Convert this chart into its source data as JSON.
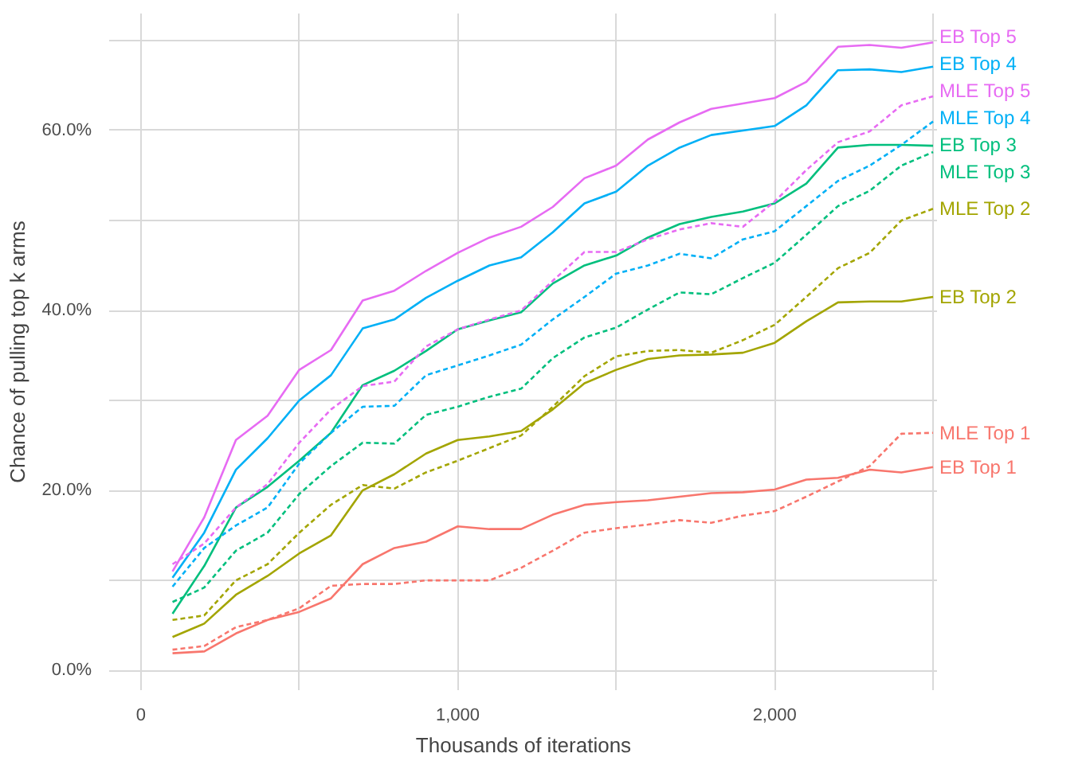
{
  "chart_data": {
    "type": "line",
    "xlabel": "Thousands of iterations",
    "ylabel": "Chance of pulling top k arms",
    "x": [
      100,
      200,
      300,
      400,
      500,
      600,
      700,
      800,
      900,
      1000,
      1100,
      1200,
      1300,
      1400,
      1500,
      1600,
      1700,
      1800,
      1900,
      2000,
      2100,
      2200,
      2300,
      2400,
      2500
    ],
    "xlim": [
      -100,
      2515
    ],
    "xticks": [
      {
        "value": 0,
        "label": "0"
      },
      {
        "value": 500,
        "label": null
      },
      {
        "value": 1000,
        "label": "1,000"
      },
      {
        "value": 1500,
        "label": null
      },
      {
        "value": 2000,
        "label": "2,000"
      },
      {
        "value": 2500,
        "label": null
      }
    ],
    "ylim": [
      -0.022,
      0.73
    ],
    "yticks": [
      {
        "value": 0,
        "label": "0.0%"
      },
      {
        "value": 0.1,
        "label": null
      },
      {
        "value": 0.2,
        "label": "20.0%"
      },
      {
        "value": 0.3,
        "label": null
      },
      {
        "value": 0.4,
        "label": "40.0%"
      },
      {
        "value": 0.5,
        "label": null
      },
      {
        "value": 0.6,
        "label": "60.0%"
      },
      {
        "value": 0.7,
        "label": null
      }
    ],
    "grid": true,
    "series": [
      {
        "name": "EB Top 1",
        "color": "#f8766d",
        "line_style": "solid",
        "values": [
          0.019,
          0.021,
          0.041,
          0.056,
          0.065,
          0.08,
          0.118,
          0.136,
          0.143,
          0.16,
          0.157,
          0.157,
          0.173,
          0.184,
          0.187,
          0.189,
          0.193,
          0.197,
          0.198,
          0.201,
          0.212,
          0.214,
          0.223,
          0.22,
          0.226
        ]
      },
      {
        "name": "MLE Top 1",
        "color": "#f8766d",
        "line_style": "dashed",
        "values": [
          0.023,
          0.027,
          0.048,
          0.056,
          0.069,
          0.094,
          0.096,
          0.096,
          0.1,
          0.1,
          0.1,
          0.114,
          0.133,
          0.153,
          0.158,
          0.162,
          0.167,
          0.164,
          0.172,
          0.177,
          0.193,
          0.21,
          0.227,
          0.263,
          0.264
        ]
      },
      {
        "name": "EB Top 2",
        "color": "#a3a500",
        "line_style": "solid",
        "values": [
          0.037,
          0.052,
          0.084,
          0.105,
          0.13,
          0.15,
          0.2,
          0.218,
          0.241,
          0.256,
          0.26,
          0.266,
          0.29,
          0.319,
          0.334,
          0.346,
          0.35,
          0.351,
          0.353,
          0.364,
          0.388,
          0.409,
          0.41,
          0.41,
          0.415
        ]
      },
      {
        "name": "MLE Top 2",
        "color": "#a3a500",
        "line_style": "dashed",
        "values": [
          0.056,
          0.061,
          0.1,
          0.118,
          0.153,
          0.184,
          0.206,
          0.202,
          0.22,
          0.233,
          0.247,
          0.261,
          0.293,
          0.327,
          0.349,
          0.355,
          0.356,
          0.353,
          0.367,
          0.384,
          0.415,
          0.447,
          0.464,
          0.5,
          0.513
        ]
      },
      {
        "name": "EB Top 3",
        "color": "#00bf7d",
        "line_style": "solid",
        "values": [
          0.063,
          0.116,
          0.181,
          0.204,
          0.233,
          0.264,
          0.317,
          0.333,
          0.355,
          0.379,
          0.389,
          0.398,
          0.43,
          0.45,
          0.461,
          0.481,
          0.496,
          0.504,
          0.51,
          0.519,
          0.541,
          0.581,
          0.584,
          0.584,
          0.583
        ]
      },
      {
        "name": "MLE Top 3",
        "color": "#00bf7d",
        "line_style": "dashed",
        "values": [
          0.076,
          0.092,
          0.133,
          0.153,
          0.196,
          0.227,
          0.253,
          0.252,
          0.284,
          0.293,
          0.304,
          0.313,
          0.347,
          0.37,
          0.381,
          0.401,
          0.42,
          0.418,
          0.436,
          0.453,
          0.484,
          0.516,
          0.533,
          0.561,
          0.576
        ]
      },
      {
        "name": "EB Top 4",
        "color": "#00b0f6",
        "line_style": "solid",
        "values": [
          0.103,
          0.153,
          0.223,
          0.258,
          0.3,
          0.328,
          0.38,
          0.39,
          0.414,
          0.433,
          0.45,
          0.459,
          0.487,
          0.519,
          0.532,
          0.561,
          0.581,
          0.595,
          0.6,
          0.605,
          0.628,
          0.667,
          0.668,
          0.665,
          0.671
        ]
      },
      {
        "name": "MLE Top 4",
        "color": "#00b0f6",
        "line_style": "dashed",
        "values": [
          0.093,
          0.136,
          0.161,
          0.181,
          0.23,
          0.264,
          0.293,
          0.294,
          0.328,
          0.339,
          0.35,
          0.362,
          0.39,
          0.415,
          0.441,
          0.45,
          0.463,
          0.458,
          0.479,
          0.488,
          0.516,
          0.544,
          0.561,
          0.584,
          0.61
        ]
      },
      {
        "name": "EB Top 5",
        "color": "#e76bf3",
        "line_style": "solid",
        "values": [
          0.11,
          0.17,
          0.256,
          0.283,
          0.334,
          0.356,
          0.411,
          0.422,
          0.444,
          0.464,
          0.481,
          0.493,
          0.515,
          0.547,
          0.561,
          0.59,
          0.609,
          0.624,
          0.63,
          0.636,
          0.654,
          0.693,
          0.695,
          0.692,
          0.698
        ]
      },
      {
        "name": "MLE Top 5",
        "color": "#e76bf3",
        "line_style": "dashed",
        "values": [
          0.118,
          0.141,
          0.181,
          0.207,
          0.253,
          0.29,
          0.316,
          0.321,
          0.36,
          0.379,
          0.39,
          0.4,
          0.433,
          0.465,
          0.465,
          0.479,
          0.49,
          0.497,
          0.493,
          0.521,
          0.556,
          0.587,
          0.599,
          0.628,
          0.638
        ]
      }
    ]
  }
}
